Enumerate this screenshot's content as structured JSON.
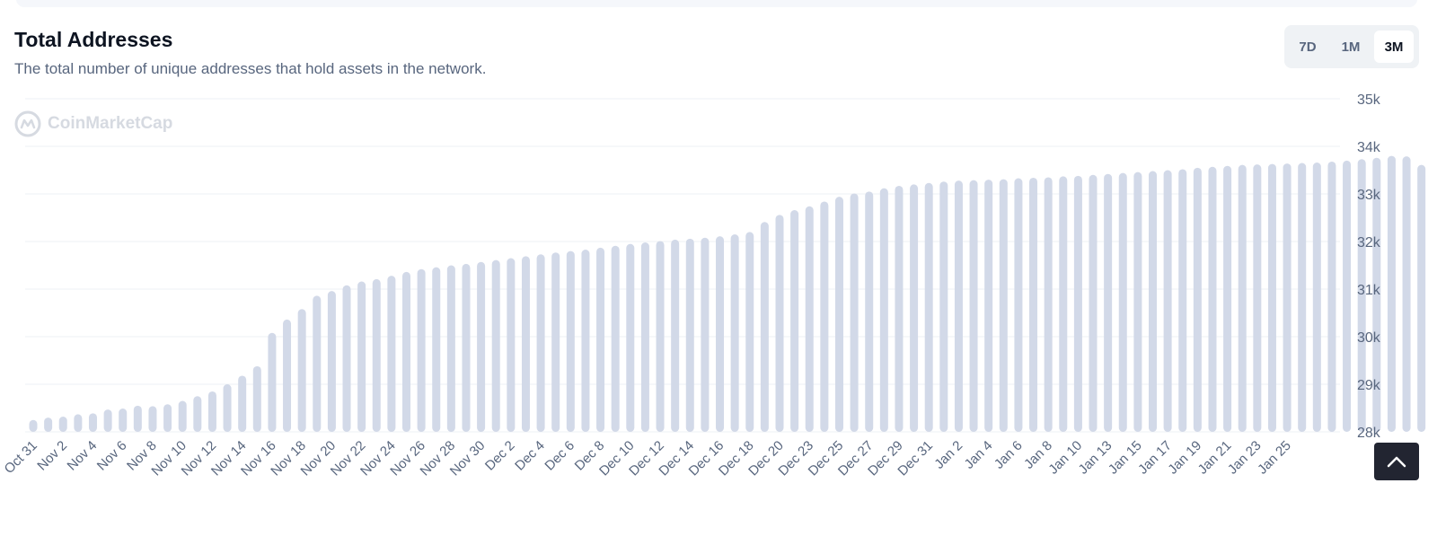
{
  "header": {
    "title": "Total Addresses",
    "subtitle": "The total number of unique addresses that hold assets in the network."
  },
  "range": {
    "options": [
      "7D",
      "1M",
      "3M"
    ],
    "selected": "3M"
  },
  "watermark": {
    "text": "CoinMarketCap"
  },
  "colors": {
    "bar": "#d2d9e8",
    "grid": "#eef0f4",
    "tick_text": "#58667e",
    "button_dark": "#222531"
  },
  "icons": {
    "watermark": "coinmarketcap-logo-icon",
    "scroll_top": "chevron-up-icon"
  },
  "chart_data": {
    "type": "bar",
    "x_tick_labels": [
      "Oct 31",
      "Nov 2",
      "Nov 4",
      "Nov 6",
      "Nov 8",
      "Nov 10",
      "Nov 12",
      "Nov 14",
      "Nov 16",
      "Nov 18",
      "Nov 20",
      "Nov 22",
      "Nov 24",
      "Nov 26",
      "Nov 28",
      "Nov 30",
      "Dec 2",
      "Dec 4",
      "Dec 6",
      "Dec 8",
      "Dec 10",
      "Dec 12",
      "Dec 14",
      "Dec 16",
      "Dec 18",
      "Dec 20",
      "Dec 23",
      "Dec 25",
      "Dec 27",
      "Dec 29",
      "Dec 31",
      "Jan 2",
      "Jan 4",
      "Jan 6",
      "Jan 8",
      "Jan 10",
      "Jan 13",
      "Jan 15",
      "Jan 17",
      "Jan 19",
      "Jan 21",
      "Jan 23",
      "Jan 25"
    ],
    "y_tick_labels": [
      "28k",
      "29k",
      "30k",
      "31k",
      "32k",
      "33k",
      "34k",
      "35k"
    ],
    "ylim": [
      28000,
      35000
    ],
    "grid": true,
    "values": [
      28250,
      28300,
      28320,
      28370,
      28390,
      28470,
      28490,
      28550,
      28540,
      28580,
      28650,
      28750,
      28850,
      29000,
      29180,
      29380,
      30080,
      30360,
      30580,
      30860,
      30960,
      31080,
      31160,
      31210,
      31280,
      31360,
      31420,
      31460,
      31500,
      31530,
      31570,
      31610,
      31650,
      31690,
      31730,
      31770,
      31800,
      31830,
      31870,
      31910,
      31950,
      31980,
      32010,
      32040,
      32060,
      32080,
      32110,
      32150,
      32200,
      32410,
      32560,
      32660,
      32740,
      32840,
      32940,
      33010,
      33050,
      33120,
      33170,
      33200,
      33230,
      33260,
      33280,
      33290,
      33300,
      33310,
      33330,
      33340,
      33350,
      33370,
      33380,
      33400,
      33420,
      33440,
      33460,
      33480,
      33500,
      33520,
      33550,
      33570,
      33590,
      33610,
      33620,
      33630,
      33640,
      33650,
      33660,
      33680,
      33700,
      33730,
      33760,
      33800,
      33790,
      33610
    ]
  }
}
